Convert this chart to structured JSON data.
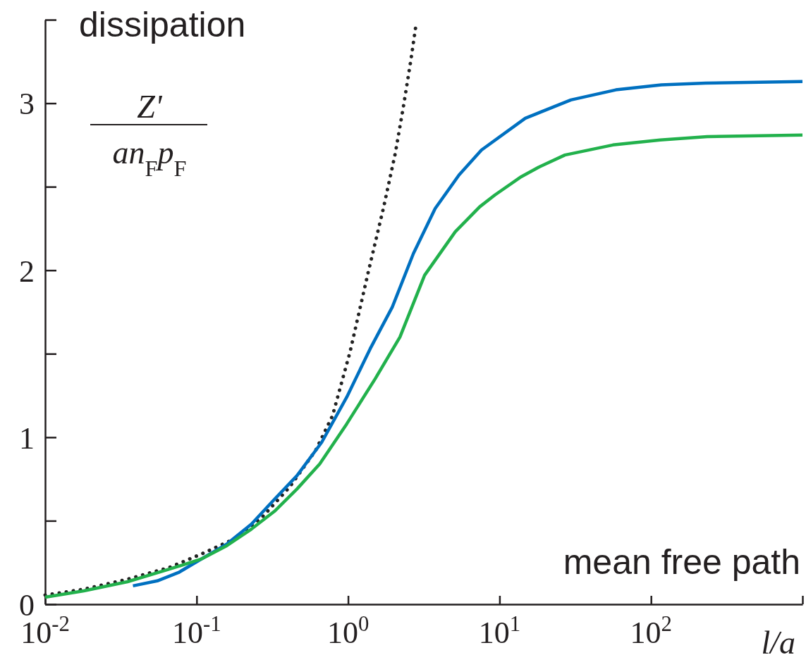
{
  "chart_data": {
    "type": "line",
    "xlabel": "l/a",
    "ylabel": "Z'\nan$_{F}$p$_{F}$",
    "annotations": [
      "dissipation",
      "mean free path"
    ],
    "log": "x",
    "xlim": [
      0.01,
      1000
    ],
    "ylim": [
      0,
      3.5
    ],
    "xticks": [
      {
        "value": 0.01,
        "label": "10$^{-2}$"
      },
      {
        "value": 0.1,
        "label": "10$^{-1}$"
      },
      {
        "value": 1,
        "label": "10$^{0}$"
      },
      {
        "value": 10,
        "label": "10$^{1}$"
      },
      {
        "value": 100,
        "label": "10$^{2}$"
      },
      {
        "value": 1000,
        "label": null
      }
    ],
    "yticks": [
      0,
      {
        "value": 0.5,
        "label": null
      },
      1,
      {
        "value": 1.5,
        "label": null
      },
      2,
      {
        "value": 2.5,
        "label": null
      },
      3,
      {
        "value": 3.5,
        "label": null
      }
    ],
    "grid": false,
    "marker": "none",
    "series": [
      {
        "color": "#222222",
        "line_style": "dotted",
        "x": [
          0.01,
          0.018,
          0.035,
          0.066,
          0.107,
          0.176,
          0.27,
          0.41,
          0.61,
          0.79,
          1.03,
          1.36,
          1.72,
          2.05,
          2.32,
          2.6,
          2.82
        ],
        "values": [
          0.055,
          0.09,
          0.15,
          0.22,
          0.3,
          0.39,
          0.52,
          0.7,
          0.92,
          1.13,
          1.51,
          1.99,
          2.38,
          2.7,
          2.98,
          3.26,
          3.48
        ]
      },
      {
        "color": "#0070c0",
        "line_style": "solid",
        "x": [
          0.038,
          0.055,
          0.076,
          0.107,
          0.158,
          0.23,
          0.32,
          0.46,
          0.67,
          0.98,
          1.4,
          1.96,
          2.7,
          3.76,
          5.4,
          7.6,
          14.8,
          29.6,
          58.6,
          117,
          230,
          1000
        ],
        "values": [
          0.11,
          0.14,
          0.19,
          0.27,
          0.36,
          0.48,
          0.62,
          0.77,
          0.97,
          1.24,
          1.53,
          1.78,
          2.1,
          2.37,
          2.57,
          2.72,
          2.91,
          3.02,
          3.08,
          3.11,
          3.12,
          3.13
        ]
      },
      {
        "color": "#22b14c",
        "line_style": "solid",
        "x": [
          0.01,
          0.018,
          0.035,
          0.066,
          0.107,
          0.158,
          0.23,
          0.33,
          0.46,
          0.65,
          0.98,
          1.51,
          2.2,
          3.2,
          5.1,
          7.4,
          9.3,
          13.9,
          18.4,
          27,
          56,
          115,
          235,
          1000
        ],
        "values": [
          0.042,
          0.08,
          0.135,
          0.21,
          0.27,
          0.35,
          0.45,
          0.56,
          0.69,
          0.84,
          1.08,
          1.35,
          1.6,
          1.97,
          2.23,
          2.38,
          2.45,
          2.56,
          2.62,
          2.69,
          2.75,
          2.78,
          2.8,
          2.81
        ]
      }
    ]
  }
}
